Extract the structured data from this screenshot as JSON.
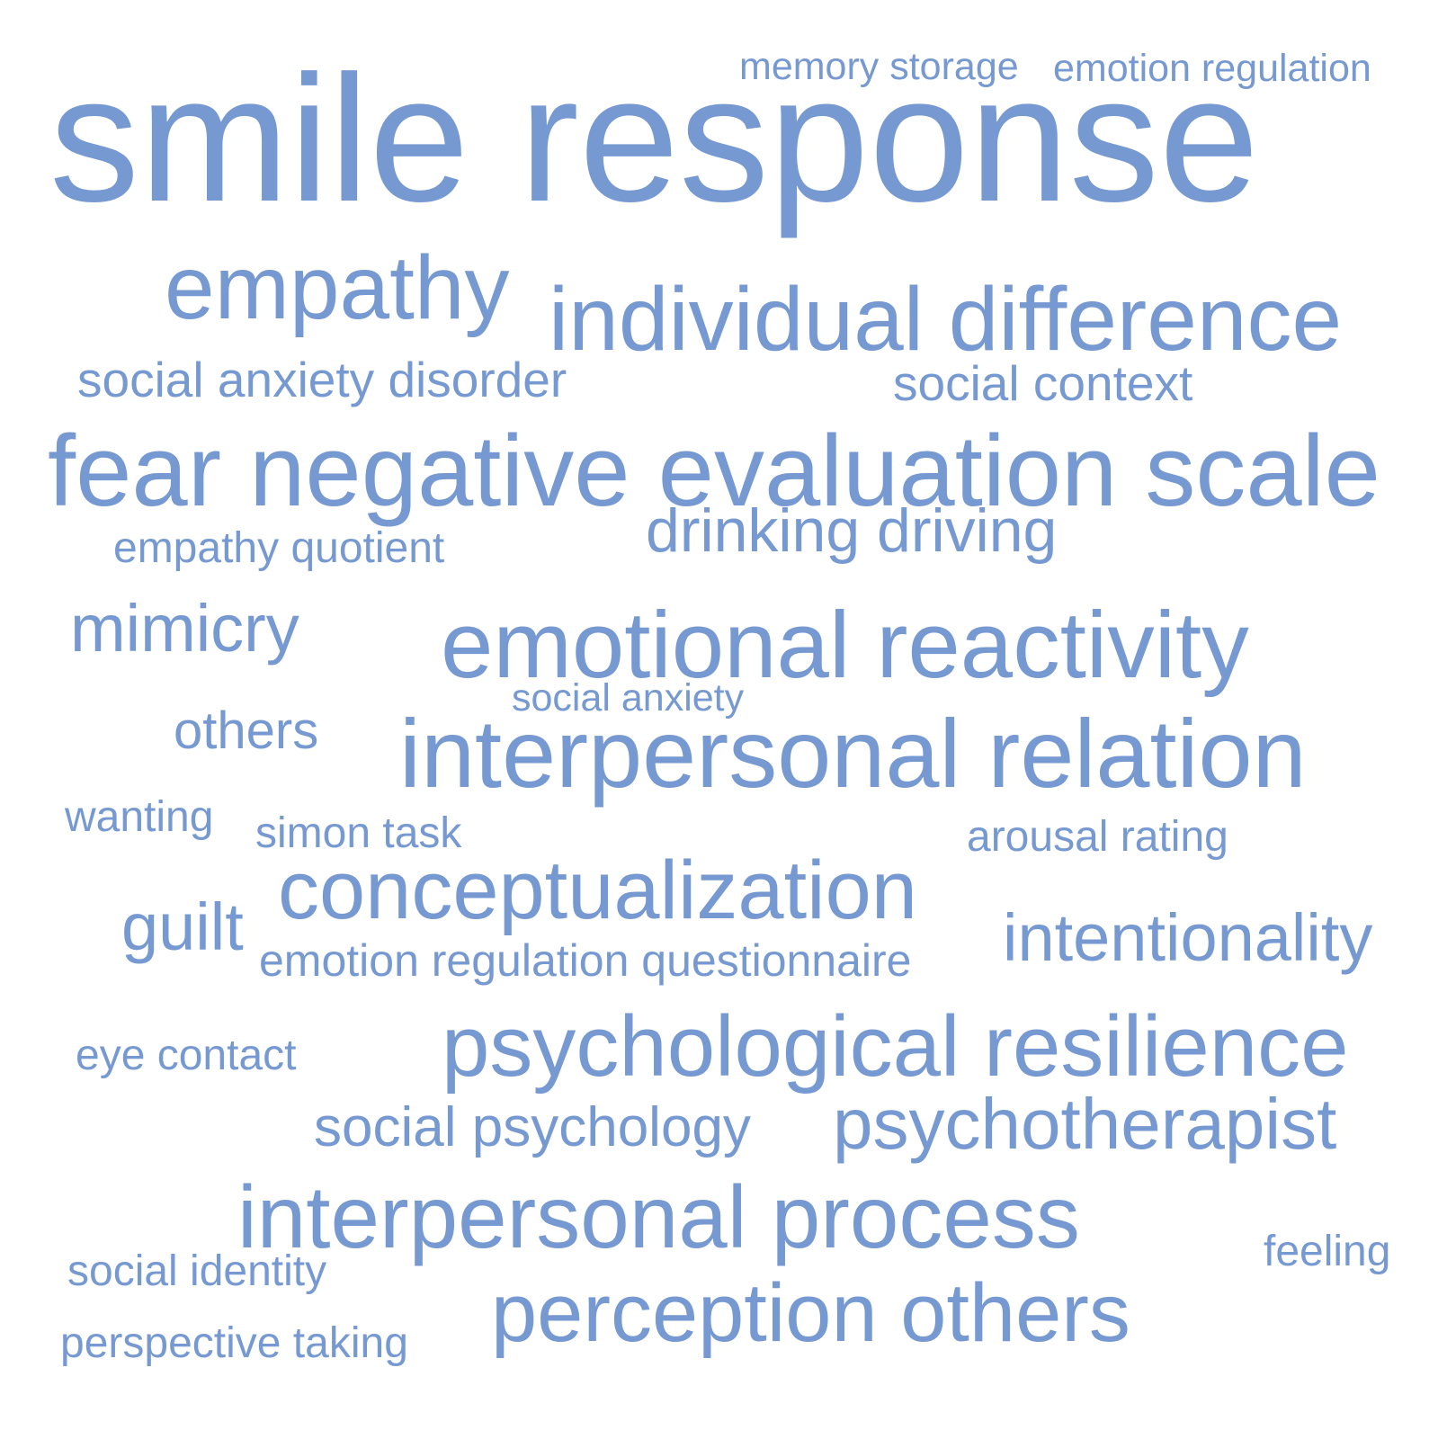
{
  "word_cloud": {
    "color": "#7799d1",
    "words": [
      "memory storage",
      "emotion regulation",
      "smile response",
      "empathy",
      "individual difference",
      "social anxiety disorder",
      "social context",
      "fear negative evaluation scale",
      "drinking driving",
      "empathy quotient",
      "mimicry",
      "emotional reactivity",
      "social anxiety",
      "others",
      "interpersonal relation",
      "wanting",
      "simon task",
      "arousal rating",
      "conceptualization",
      "guilt",
      "intentionality",
      "emotion regulation questionnaire",
      "eye contact",
      "psychological resilience",
      "social psychology",
      "psychotherapist",
      "interpersonal process",
      "feeling",
      "social identity",
      "perception others",
      "perspective taking"
    ]
  }
}
